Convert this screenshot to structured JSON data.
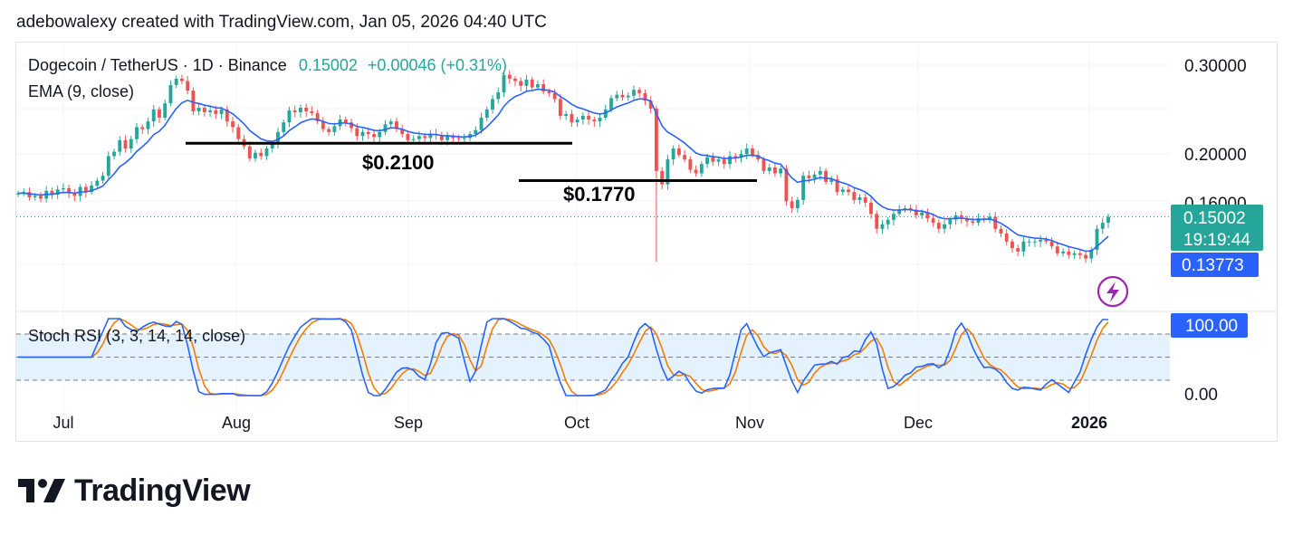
{
  "header": {
    "credit": "adebowalexy created with TradingView.com, Jan 05, 2026 04:40 UTC"
  },
  "legend": {
    "symbol": "Dogecoin / TetherUS · 1D · Binance",
    "price": "0.15002",
    "change": "+0.00046 (+0.31%)",
    "ema": "EMA (9, close)",
    "stoch": "Stoch RSI (3, 3, 14, 14, close)"
  },
  "price_axis": {
    "ticks": [
      {
        "label": "0.30000",
        "value": 0.3
      },
      {
        "label": "0.20000",
        "value": 0.2
      },
      {
        "label": "0.16000",
        "value": 0.16
      }
    ],
    "last_price_tag": "0.15002",
    "countdown_tag": "19:19:44",
    "ema_tag": "0.13773"
  },
  "rsi_axis": {
    "ticks": [
      "100.00",
      "0.00"
    ],
    "tag": "100.00"
  },
  "time_axis": {
    "labels": [
      "Jul",
      "Aug",
      "Sep",
      "Oct",
      "Nov",
      "Dec",
      "2026"
    ]
  },
  "annotations": [
    {
      "text": "$0.2100",
      "value": 0.21
    },
    {
      "text": "$0.1770",
      "value": 0.177
    }
  ],
  "icons": {
    "flash": "lightning-bolt-icon"
  },
  "colors": {
    "up": "#26a69a",
    "down": "#ef5350",
    "ema": "#2962ff",
    "k": "#2962ff",
    "d": "#f57c00",
    "rsi_band": "#e3f2fd",
    "flash": "#9c27b0"
  },
  "logo": {
    "text": "TradingView"
  },
  "chart_data": {
    "type": "candlestick",
    "scale": "log",
    "ylim": [
      0.11,
      0.31
    ],
    "closes": [
      0.167,
      0.168,
      0.164,
      0.165,
      0.163,
      0.169,
      0.166,
      0.17,
      0.171,
      0.167,
      0.165,
      0.172,
      0.168,
      0.173,
      0.177,
      0.181,
      0.198,
      0.202,
      0.213,
      0.205,
      0.214,
      0.226,
      0.224,
      0.232,
      0.245,
      0.236,
      0.252,
      0.274,
      0.282,
      0.279,
      0.267,
      0.243,
      0.247,
      0.242,
      0.244,
      0.24,
      0.245,
      0.232,
      0.226,
      0.214,
      0.207,
      0.196,
      0.201,
      0.198,
      0.205,
      0.209,
      0.221,
      0.231,
      0.244,
      0.242,
      0.247,
      0.243,
      0.241,
      0.232,
      0.224,
      0.221,
      0.227,
      0.234,
      0.231,
      0.225,
      0.217,
      0.221,
      0.219,
      0.216,
      0.221,
      0.229,
      0.232,
      0.224,
      0.219,
      0.213,
      0.214,
      0.217,
      0.215,
      0.219,
      0.218,
      0.213,
      0.217,
      0.215,
      0.214,
      0.215,
      0.219,
      0.223,
      0.236,
      0.245,
      0.257,
      0.265,
      0.287,
      0.282,
      0.279,
      0.273,
      0.281,
      0.271,
      0.275,
      0.266,
      0.264,
      0.257,
      0.238,
      0.24,
      0.231,
      0.234,
      0.238,
      0.234,
      0.232,
      0.236,
      0.245,
      0.258,
      0.262,
      0.259,
      0.261,
      0.268,
      0.264,
      0.255,
      0.246,
      0.185,
      0.174,
      0.195,
      0.205,
      0.199,
      0.195,
      0.186,
      0.183,
      0.191,
      0.197,
      0.193,
      0.195,
      0.191,
      0.198,
      0.197,
      0.2,
      0.205,
      0.199,
      0.195,
      0.185,
      0.188,
      0.183,
      0.187,
      0.161,
      0.156,
      0.162,
      0.181,
      0.179,
      0.182,
      0.185,
      0.176,
      0.178,
      0.168,
      0.17,
      0.168,
      0.162,
      0.164,
      0.16,
      0.152,
      0.142,
      0.145,
      0.148,
      0.152,
      0.155,
      0.156,
      0.155,
      0.151,
      0.153,
      0.149,
      0.146,
      0.142,
      0.145,
      0.148,
      0.151,
      0.149,
      0.147,
      0.146,
      0.149,
      0.148,
      0.15,
      0.142,
      0.139,
      0.134,
      0.13,
      0.128,
      0.134,
      0.134,
      0.134,
      0.135,
      0.134,
      0.131,
      0.127,
      0.128,
      0.126,
      0.127,
      0.126,
      0.124,
      0.129,
      0.142,
      0.146,
      0.15
    ],
    "ema_last": 0.13773,
    "stoch_rsi": {
      "ylim": [
        0,
        100
      ],
      "levels": [
        80,
        50,
        20
      ]
    }
  }
}
